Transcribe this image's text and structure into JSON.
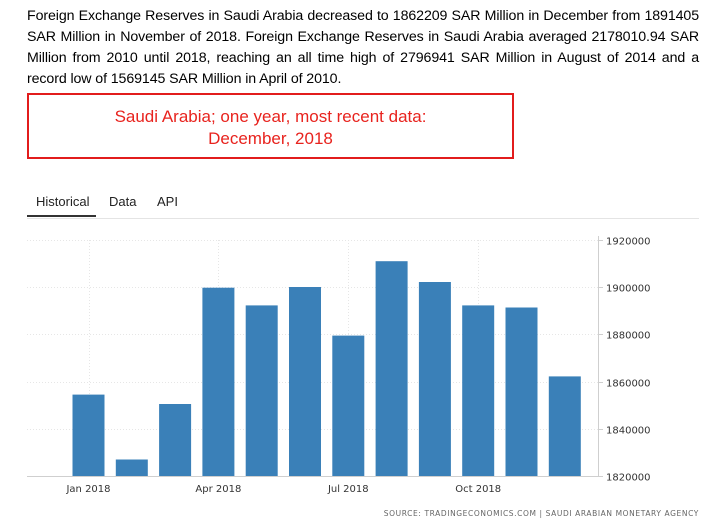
{
  "description": "Foreign Exchange Reserves in Saudi Arabia decreased to 1862209 SAR Million in December from 1891405 SAR Million in November of 2018. Foreign Exchange Reserves in Saudi Arabia averaged 2178010.94 SAR Million from 2010 until 2018, reaching an all time high of 2796941 SAR Million in August of 2014 and a record low of 1569145 SAR Million in April of 2010.",
  "callout": {
    "line1": "Saudi Arabia; one year, most recent data:",
    "line2": "December, 2018",
    "color": "#e21c1c"
  },
  "tabs": [
    {
      "label": "Historical",
      "active": true
    },
    {
      "label": "Data",
      "active": false
    },
    {
      "label": "API",
      "active": false
    }
  ],
  "source": "SOURCE: TRADINGECONOMICS.COM | SAUDI ARABIAN MONETARY AGENCY",
  "chart_data": {
    "type": "bar",
    "categories": [
      "Jan 2018",
      "Feb 2018",
      "Mar 2018",
      "Apr 2018",
      "May 2018",
      "Jun 2018",
      "Jul 2018",
      "Aug 2018",
      "Sep 2018",
      "Oct 2018",
      "Nov 2018",
      "Dec 2018"
    ],
    "values": [
      1854500,
      1827000,
      1850500,
      1899800,
      1892300,
      1900100,
      1879500,
      1911000,
      1902200,
      1892300,
      1891405,
      1862209
    ],
    "x_tick_labels": [
      "Jan 2018",
      "Apr 2018",
      "Jul 2018",
      "Oct 2018"
    ],
    "x_tick_indices": [
      0,
      3,
      6,
      9
    ],
    "y_ticks": [
      1820000,
      1840000,
      1860000,
      1880000,
      1900000,
      1920000
    ],
    "ylim": [
      1820000,
      1920000
    ],
    "y_axis_side": "right",
    "grid": true,
    "bar_color": "#3a80b8",
    "title": "",
    "xlabel": "",
    "ylabel": ""
  }
}
